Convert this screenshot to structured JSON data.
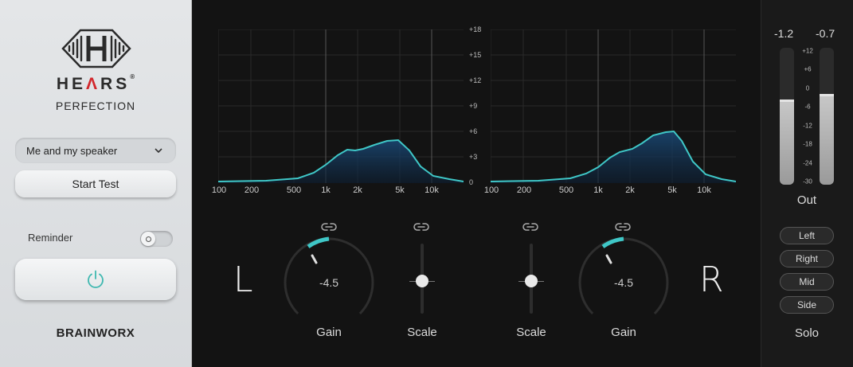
{
  "brand": {
    "name_pre": "HE",
    "name_a": "Λ",
    "name_post": "RS",
    "registered": "®",
    "subtitle": "PERFECTION",
    "maker": "BRAINWORX"
  },
  "profile_dropdown": {
    "selected": "Me and my speaker"
  },
  "buttons": {
    "start_test": "Start Test"
  },
  "reminder": {
    "label": "Reminder",
    "enabled": false
  },
  "power": {
    "icon": "power-icon",
    "accent": "#3fb8b0"
  },
  "graph": {
    "x_ticks": [
      "100",
      "200",
      "500",
      "1k",
      "2k",
      "5k",
      "10k"
    ],
    "y_ticks": [
      "+18",
      "+15",
      "+12",
      "+9",
      "+6",
      "+3",
      "0"
    ],
    "curve_color": "#3fc7c7"
  },
  "left_channel": {
    "label": "L",
    "gain_value": "-4.5",
    "gain_label": "Gain",
    "scale_label": "Scale"
  },
  "right_channel": {
    "label": "R",
    "gain_value": "-4.5",
    "gain_label": "Gain",
    "scale_label": "Scale"
  },
  "output": {
    "left_peak": "-1.2",
    "right_peak": "-0.7",
    "scale": [
      "+12",
      "+6",
      "0",
      "-6",
      "-12",
      "-18",
      "-24",
      "-30"
    ],
    "label": "Out",
    "left_level_fraction": 0.62,
    "right_level_fraction": 0.66
  },
  "solo": {
    "buttons": [
      "Left",
      "Right",
      "Mid",
      "Side"
    ],
    "label": "Solo"
  }
}
